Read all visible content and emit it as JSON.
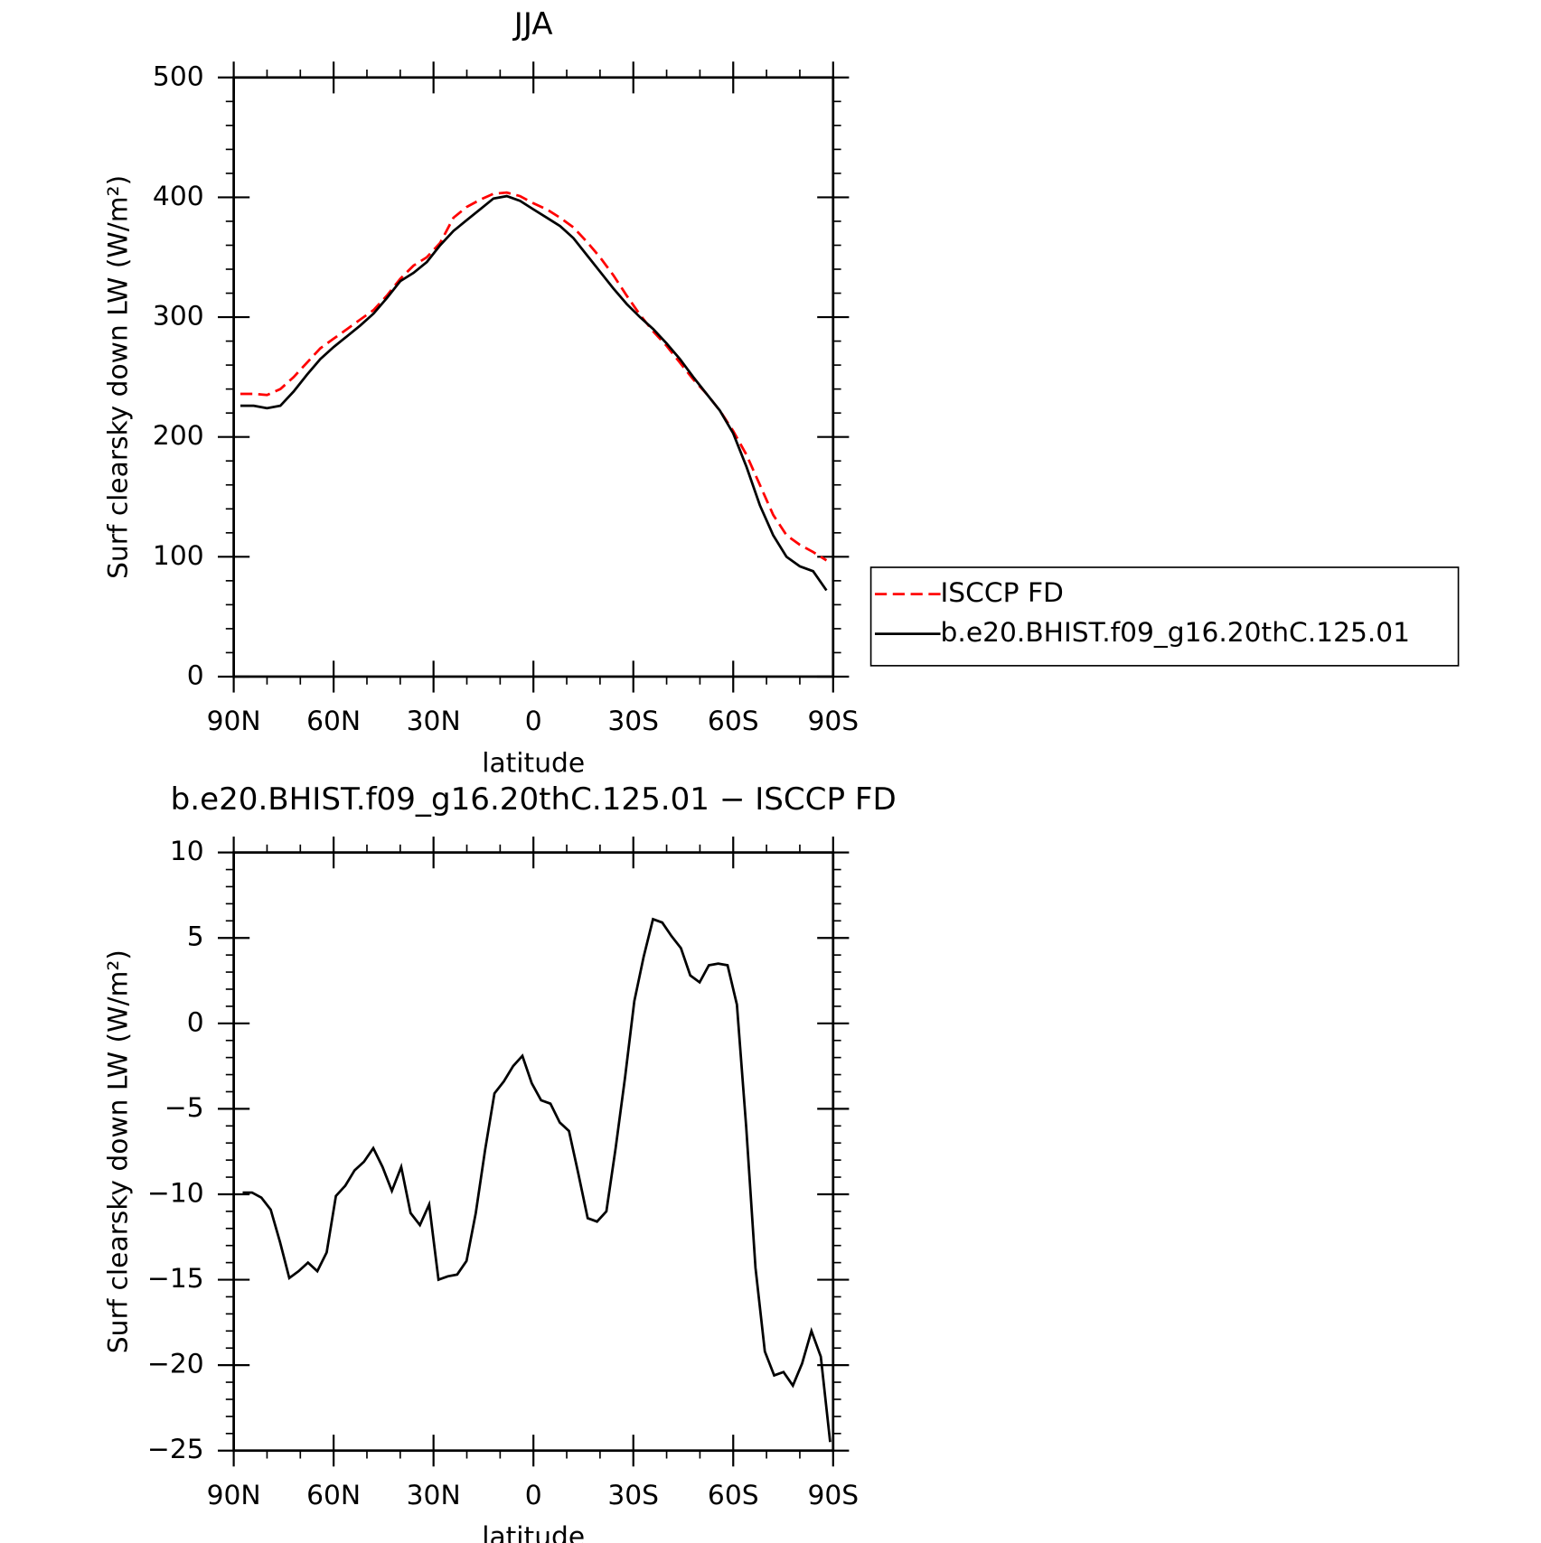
{
  "chart_data": [
    {
      "type": "line",
      "title": "JJA",
      "x_label": "latitude",
      "y_label": "Surf clearsky down LW (W/m²)",
      "x": [
        88,
        84,
        80,
        76,
        72,
        68,
        64,
        60,
        56,
        52,
        48,
        44,
        40,
        36,
        32,
        28,
        24,
        20,
        16,
        12,
        8,
        4,
        0,
        -4,
        -8,
        -12,
        -16,
        -20,
        -24,
        -28,
        -32,
        -36,
        -40,
        -44,
        -48,
        -52,
        -56,
        -60,
        -64,
        -68,
        -72,
        -76,
        -80,
        -84,
        -88
      ],
      "series": [
        {
          "name": "ISCCP FD",
          "color": "#ff0000",
          "dash": true,
          "values": [
            236,
            236,
            235,
            240,
            250,
            262,
            274,
            282,
            290,
            298,
            306,
            318,
            332,
            343,
            350,
            362,
            383,
            392,
            398,
            403,
            404,
            401,
            395,
            390,
            383,
            375,
            363,
            350,
            335,
            318,
            302,
            288,
            276,
            262,
            248,
            236,
            222,
            205,
            185,
            160,
            135,
            118,
            110,
            104,
            97
          ]
        },
        {
          "name": "b.e20.BHIST.f09_g16.20thC.125.01",
          "color": "#000000",
          "dash": false,
          "values": [
            226,
            226,
            224,
            226,
            238,
            252,
            265,
            275,
            284,
            293,
            303,
            316,
            330,
            337,
            346,
            360,
            372,
            381,
            390,
            399,
            401,
            397,
            390,
            383,
            376,
            366,
            352,
            338,
            324,
            311,
            300,
            290,
            278,
            265,
            250,
            236,
            222,
            203,
            175,
            143,
            118,
            100,
            92,
            88,
            72
          ]
        }
      ],
      "xlim": [
        90,
        -90
      ],
      "xticks": [
        {
          "value": 90,
          "label": "90N"
        },
        {
          "value": 60,
          "label": "60N"
        },
        {
          "value": 30,
          "label": "30N"
        },
        0,
        {
          "value": -30,
          "label": "30S"
        },
        {
          "value": -60,
          "label": "60S"
        },
        {
          "value": -90,
          "label": "90S"
        }
      ],
      "ylim": [
        0,
        500
      ],
      "yticks": [
        0,
        100,
        200,
        300,
        400,
        500
      ],
      "legend": "right"
    },
    {
      "type": "line",
      "title": "b.e20.BHIST.f09_g16.20thC.125.01 − ISCCP FD",
      "x_label": "latitude",
      "y_label": "Surf clearsky down LW (W/m²)",
      "x": [
        87.3,
        84.5,
        81.7,
        78.9,
        76.1,
        73.3,
        70.5,
        67.7,
        64.9,
        62.1,
        59.3,
        56.5,
        53.7,
        50.9,
        48.1,
        45.3,
        42.5,
        39.7,
        36.9,
        34.1,
        31.3,
        28.5,
        25.7,
        22.9,
        20.1,
        17.3,
        14.5,
        11.7,
        8.9,
        6.1,
        3.3,
        0.5,
        -2.3,
        -5.1,
        -7.9,
        -10.7,
        -13.5,
        -16.3,
        -19.1,
        -21.9,
        -24.7,
        -27.5,
        -30.3,
        -33.1,
        -35.9,
        -38.7,
        -41.5,
        -44.3,
        -47.1,
        -49.9,
        -52.7,
        -55.5,
        -58.3,
        -61.1,
        -63.9,
        -66.7,
        -69.5,
        -72.3,
        -75.1,
        -77.9,
        -80.7,
        -83.5,
        -86.3,
        -89.1
      ],
      "series": [
        {
          "color": "#000000",
          "dash": false,
          "values": [
            -9.9,
            -9.9,
            -10.2,
            -10.9,
            -12.8,
            -14.9,
            -14.5,
            -14,
            -14.5,
            -13.4,
            -10.1,
            -9.5,
            -8.6,
            -8.1,
            -7.3,
            -8.4,
            -9.8,
            -8.4,
            -11.1,
            -11.8,
            -10.6,
            -15,
            -14.8,
            -14.7,
            -13.9,
            -11.1,
            -7.4,
            -4.1,
            -3.4,
            -2.5,
            -1.9,
            -3.5,
            -4.5,
            -4.7,
            -5.8,
            -6.3,
            -8.8,
            -11.4,
            -11.6,
            -11,
            -7.3,
            -3.2,
            1.3,
            3.9,
            6.1,
            5.9,
            5.1,
            4.4,
            2.8,
            2.4,
            3.4,
            3.5,
            3.4,
            1.1,
            -6.1,
            -14.3,
            -19.2,
            -20.6,
            -20.4,
            -21.2,
            -19.9,
            -18,
            -19.5,
            -24.5
          ]
        }
      ],
      "xlim": [
        90,
        -90
      ],
      "xticks": [
        {
          "value": 90,
          "label": "90N"
        },
        {
          "value": 60,
          "label": "60N"
        },
        {
          "value": 30,
          "label": "30N"
        },
        0,
        {
          "value": -30,
          "label": "30S"
        },
        {
          "value": -60,
          "label": "60S"
        },
        {
          "value": -90,
          "label": "90S"
        }
      ],
      "ylim": [
        -25,
        10
      ],
      "yticks": [
        {
          "value": -25,
          "label": "−25"
        },
        {
          "value": -20,
          "label": "−20"
        },
        {
          "value": -15,
          "label": "−15"
        },
        {
          "value": -10,
          "label": "−10"
        },
        {
          "value": -5,
          "label": "−5"
        },
        0,
        5,
        10
      ]
    }
  ]
}
